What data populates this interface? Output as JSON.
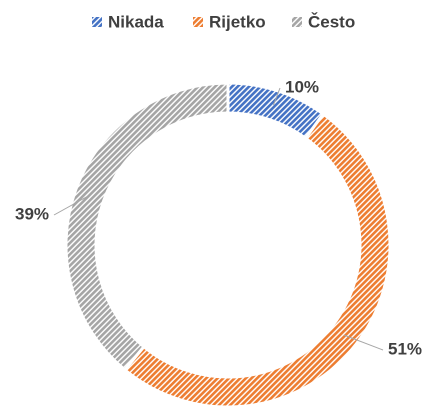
{
  "chart_data": {
    "type": "donut",
    "categories": [
      "Nikada",
      "Rijetko",
      "Često"
    ],
    "values": [
      10,
      51,
      39
    ],
    "value_labels": [
      "10%",
      "51%",
      "39%"
    ],
    "colors": [
      "#4472c4",
      "#ed7d31",
      "#a5a5a5"
    ],
    "legend": "top"
  }
}
